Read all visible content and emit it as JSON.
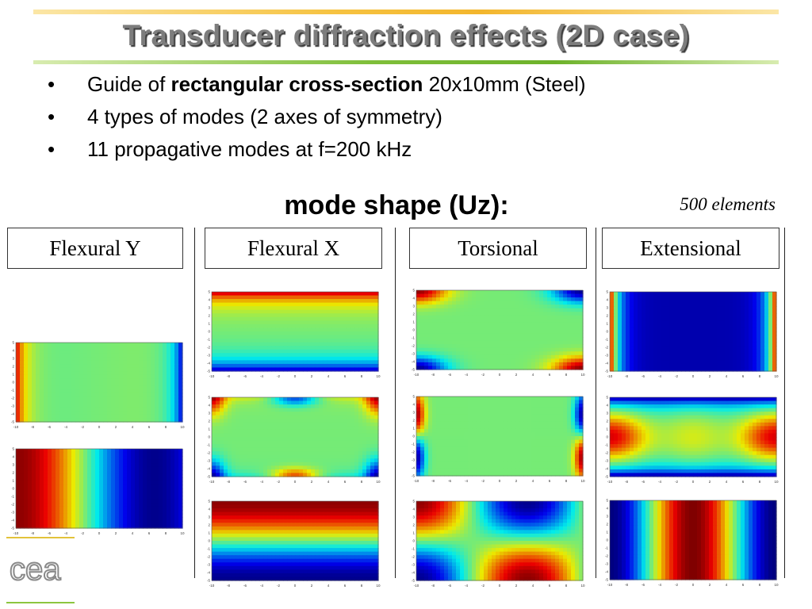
{
  "slide": {
    "title": "Transducer diffraction effects (2D case)",
    "bullet_marker": "•",
    "bullets": [
      {
        "pre": "Guide of ",
        "bold": "rectangular cross-section",
        "post": " 20x10mm (Steel)"
      },
      {
        "pre": "",
        "bold": "",
        "post": "4 types of modes (2 axes of symmetry)"
      },
      {
        "pre": "",
        "bold": "",
        "post": "11 propagative modes at f=200 kHz"
      }
    ],
    "mode_heading": "mode shape (Uz):",
    "elements_note": "500 elements",
    "columns": [
      "Flexural Y",
      "Flexural X",
      "Torsional",
      "Extensional"
    ],
    "logo_text": "cea",
    "colors": {
      "title_text": "#7d7d7d",
      "bar_top": "#f3b62d",
      "bar_bottom": "#6db22a",
      "jet_blue": "#0000a8",
      "jet_red": "#b00000"
    }
  },
  "chart_data": {
    "type": "heatmap",
    "colormap": "jet",
    "x_ticks": [
      "-10",
      "-8",
      "-6",
      "-4",
      "-2",
      "0",
      "2",
      "4",
      "6",
      "8",
      "10"
    ],
    "y_ticks": [
      "5",
      "4",
      "3",
      "2",
      "1",
      "0",
      "-1",
      "-2",
      "-3",
      "-4",
      "-5"
    ],
    "xlim": [
      -10,
      10
    ],
    "ylim": [
      -5,
      5
    ],
    "panels": [
      {
        "column": "Flexural Y",
        "row": 1,
        "pattern": "fy1"
      },
      {
        "column": "Flexural Y",
        "row": 2,
        "pattern": "fy2"
      },
      {
        "column": "Flexural X",
        "row": 1,
        "pattern": "fx1"
      },
      {
        "column": "Flexural X",
        "row": 2,
        "pattern": "fx2"
      },
      {
        "column": "Flexural X",
        "row": 3,
        "pattern": "fx3"
      },
      {
        "column": "Torsional",
        "row": 1,
        "pattern": "t1"
      },
      {
        "column": "Torsional",
        "row": 2,
        "pattern": "t2"
      },
      {
        "column": "Torsional",
        "row": 3,
        "pattern": "t3"
      },
      {
        "column": "Extensional",
        "row": 1,
        "pattern": "e1"
      },
      {
        "column": "Extensional",
        "row": 2,
        "pattern": "e2"
      },
      {
        "column": "Extensional",
        "row": 3,
        "pattern": "e3"
      }
    ]
  }
}
